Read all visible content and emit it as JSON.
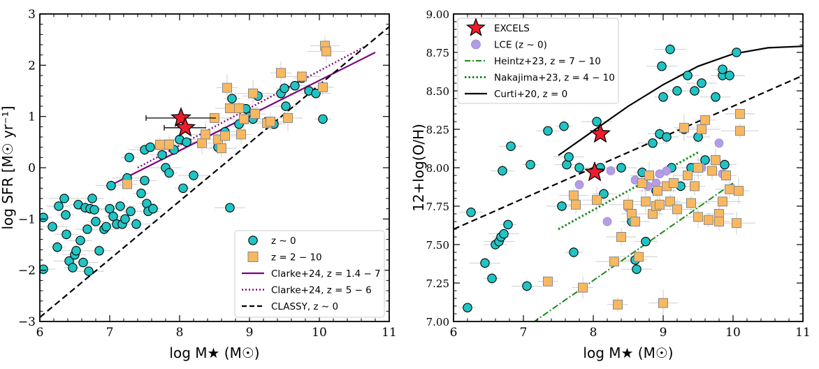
{
  "chart_data": [
    {
      "type": "scatter",
      "xlabel": "log M★ (M☉)",
      "ylabel": "log SFR [M☉ yr⁻¹]",
      "xlim": [
        6,
        11
      ],
      "ylim": [
        -3,
        3
      ],
      "xticks": [
        "6",
        "7",
        "8",
        "9",
        "10",
        "11"
      ],
      "yticks": [
        "−3",
        "−2",
        "−1",
        "0",
        "1",
        "2",
        "3"
      ],
      "legend_position": "lower-right",
      "legend": [
        {
          "label": "z ∼ 0",
          "marker": "circle"
        },
        {
          "label": "z = 2 − 10",
          "marker": "square"
        },
        {
          "label": "Clarke+24, z = 1.4 − 7",
          "marker": "solid-line"
        },
        {
          "label": "Clarke+24, z = 5 − 6",
          "marker": "dotted-line"
        },
        {
          "label": "CLASSY, z ∼ 0",
          "marker": "dashed-line"
        }
      ],
      "series": [
        {
          "name": "z ∼ 0",
          "points": [
            [
              6.05,
              -0.97
            ],
            [
              6.05,
              -1.98
            ],
            [
              6.18,
              -1.15
            ],
            [
              6.25,
              -1.55
            ],
            [
              6.27,
              -0.75
            ],
            [
              6.35,
              -0.6
            ],
            [
              6.37,
              -0.92
            ],
            [
              6.38,
              -1.3
            ],
            [
              6.42,
              -1.82
            ],
            [
              6.47,
              -1.95
            ],
            [
              6.5,
              -1.7
            ],
            [
              6.52,
              -1.62
            ],
            [
              6.55,
              -0.72
            ],
            [
              6.58,
              -1.42
            ],
            [
              6.62,
              -1.85
            ],
            [
              6.65,
              -0.78
            ],
            [
              6.68,
              -1.2
            ],
            [
              6.7,
              -2.02
            ],
            [
              6.72,
              -0.8
            ],
            [
              6.75,
              -0.6
            ],
            [
              6.78,
              -0.82
            ],
            [
              6.8,
              -1.05
            ],
            [
              6.85,
              -1.62
            ],
            [
              6.92,
              -1.2
            ],
            [
              6.95,
              -1.15
            ],
            [
              7.0,
              -0.8
            ],
            [
              7.02,
              -0.35
            ],
            [
              7.05,
              -0.95
            ],
            [
              7.1,
              -1.1
            ],
            [
              7.15,
              -0.75
            ],
            [
              7.18,
              -1.1
            ],
            [
              7.22,
              -1.0
            ],
            [
              7.25,
              -0.2
            ],
            [
              7.28,
              0.2
            ],
            [
              7.3,
              -0.85
            ],
            [
              7.38,
              -1.1
            ],
            [
              7.45,
              -0.5
            ],
            [
              7.5,
              -0.25
            ],
            [
              7.5,
              0.35
            ],
            [
              7.53,
              -0.7
            ],
            [
              7.55,
              -0.85
            ],
            [
              7.58,
              0.4
            ],
            [
              7.62,
              -0.8
            ],
            [
              7.75,
              0.25
            ],
            [
              7.8,
              0.0
            ],
            [
              7.85,
              -0.1
            ],
            [
              7.92,
              0.35
            ],
            [
              8.0,
              0.55
            ],
            [
              8.05,
              -0.4
            ],
            [
              8.1,
              0.5
            ],
            [
              8.2,
              -0.15
            ],
            [
              8.55,
              0.4
            ],
            [
              8.65,
              0.7
            ],
            [
              8.72,
              -0.78
            ],
            [
              8.75,
              1.35
            ],
            [
              8.85,
              0.85
            ],
            [
              8.95,
              1.15
            ],
            [
              9.0,
              1.0
            ],
            [
              9.05,
              0.95
            ],
            [
              9.12,
              1.4
            ],
            [
              9.25,
              0.9
            ],
            [
              9.35,
              0.85
            ],
            [
              9.45,
              1.45
            ],
            [
              9.5,
              1.55
            ],
            [
              9.52,
              1.2
            ],
            [
              9.65,
              1.6
            ],
            [
              9.75,
              1.75
            ],
            [
              9.85,
              1.5
            ],
            [
              9.95,
              1.45
            ],
            [
              10.05,
              0.95
            ]
          ]
        },
        {
          "name": "z = 2 − 10",
          "points": [
            [
              7.25,
              -0.32
            ],
            [
              7.72,
              0.45
            ],
            [
              7.85,
              0.45
            ],
            [
              8.32,
              0.48
            ],
            [
              8.37,
              0.65
            ],
            [
              8.5,
              0.97
            ],
            [
              8.55,
              0.55
            ],
            [
              8.6,
              0.38
            ],
            [
              8.65,
              0.62
            ],
            [
              8.68,
              1.56
            ],
            [
              8.72,
              1.16
            ],
            [
              8.85,
              1.16
            ],
            [
              8.88,
              0.65
            ],
            [
              8.92,
              0.95
            ],
            [
              9.05,
              1.45
            ],
            [
              9.08,
              1.05
            ],
            [
              9.25,
              0.87
            ],
            [
              9.3,
              0.9
            ],
            [
              9.45,
              1.85
            ],
            [
              9.55,
              0.97
            ],
            [
              9.75,
              1.78
            ],
            [
              10.05,
              1.57
            ],
            [
              10.08,
              2.38
            ],
            [
              10.1,
              2.27
            ]
          ]
        },
        {
          "name": "EXCELS",
          "points": [
            [
              8.02,
              0.97
            ],
            [
              8.08,
              0.78
            ]
          ]
        },
        {
          "name": "Clarke+24, z = 1.4 − 7",
          "type": "line",
          "points": [
            [
              7.0,
              -0.35
            ],
            [
              10.8,
              2.25
            ]
          ]
        },
        {
          "name": "Clarke+24, z = 5 − 6",
          "type": "line",
          "points": [
            [
              7.4,
              0.0
            ],
            [
              10.7,
              2.4
            ]
          ]
        },
        {
          "name": "CLASSY, z ∼ 0",
          "type": "line",
          "points": [
            [
              6.0,
              -2.92
            ],
            [
              11.0,
              2.75
            ]
          ]
        }
      ]
    },
    {
      "type": "scatter",
      "xlabel": "log M★ (M☉)",
      "ylabel": "12+log(O/H)",
      "xlim": [
        6,
        11
      ],
      "ylim": [
        7.0,
        9.0
      ],
      "xticks": [
        "6",
        "7",
        "8",
        "9",
        "10",
        "11"
      ],
      "yticks": [
        "7.00",
        "7.25",
        "7.50",
        "7.75",
        "8.00",
        "8.25",
        "8.50",
        "8.75",
        "9.00"
      ],
      "legend_position": "upper-left",
      "legend": [
        {
          "label": "EXCELS",
          "marker": "star"
        },
        {
          "label": "LCE (z ∼ 0)",
          "marker": "circle-lilac"
        },
        {
          "label": "Heintz+23, z = 7 − 10",
          "marker": "dashdot-line"
        },
        {
          "label": "Nakajima+23, z = 4 − 10",
          "marker": "dotted-line"
        },
        {
          "label": "Curti+20, z = 0",
          "marker": "solid-line"
        }
      ],
      "series": [
        {
          "name": "z ∼ 0",
          "points": [
            [
              6.2,
              7.09
            ],
            [
              6.25,
              7.71
            ],
            [
              6.45,
              7.38
            ],
            [
              6.55,
              7.28
            ],
            [
              6.6,
              7.5
            ],
            [
              6.65,
              7.52
            ],
            [
              6.68,
              7.55
            ],
            [
              6.7,
              7.98
            ],
            [
              6.72,
              7.57
            ],
            [
              6.78,
              7.63
            ],
            [
              6.82,
              8.14
            ],
            [
              7.05,
              7.23
            ],
            [
              7.1,
              8.02
            ],
            [
              7.35,
              8.24
            ],
            [
              7.55,
              7.75
            ],
            [
              7.58,
              8.27
            ],
            [
              7.62,
              8.02
            ],
            [
              7.65,
              8.07
            ],
            [
              7.72,
              7.45
            ],
            [
              7.8,
              8.0
            ],
            [
              8.05,
              8.3
            ],
            [
              8.1,
              8.0
            ],
            [
              8.15,
              7.83
            ],
            [
              8.4,
              8.0
            ],
            [
              8.55,
              7.65
            ],
            [
              8.6,
              7.4
            ],
            [
              8.62,
              7.34
            ],
            [
              8.7,
              7.97
            ],
            [
              8.75,
              7.52
            ],
            [
              8.85,
              8.16
            ],
            [
              8.9,
              7.85
            ],
            [
              8.95,
              8.22
            ],
            [
              8.98,
              8.66
            ],
            [
              9.0,
              8.46
            ],
            [
              9.05,
              8.2
            ],
            [
              9.1,
              8.77
            ],
            [
              9.12,
              8.0
            ],
            [
              9.2,
              8.5
            ],
            [
              9.25,
              7.88
            ],
            [
              9.3,
              8.25
            ],
            [
              9.35,
              8.6
            ],
            [
              9.4,
              8.0
            ],
            [
              9.45,
              8.5
            ],
            [
              9.5,
              8.2
            ],
            [
              9.55,
              8.55
            ],
            [
              9.6,
              8.05
            ],
            [
              9.85,
              8.6
            ],
            [
              9.95,
              8.6
            ],
            [
              10.05,
              8.75
            ],
            [
              9.88,
              8.02
            ],
            [
              9.75,
              8.46
            ],
            [
              9.85,
              8.64
            ]
          ]
        },
        {
          "name": "z = 2 − 10",
          "points": [
            [
              7.35,
              7.26
            ],
            [
              7.72,
              7.82
            ],
            [
              7.75,
              7.76
            ],
            [
              7.85,
              7.22
            ],
            [
              8.05,
              7.79
            ],
            [
              8.3,
              7.39
            ],
            [
              8.35,
              7.11
            ],
            [
              8.4,
              7.55
            ],
            [
              8.5,
              7.76
            ],
            [
              8.55,
              7.7
            ],
            [
              8.6,
              7.65
            ],
            [
              8.65,
              7.42
            ],
            [
              8.7,
              7.9
            ],
            [
              8.75,
              7.78
            ],
            [
              8.8,
              7.95
            ],
            [
              8.85,
              7.7
            ],
            [
              8.9,
              7.75
            ],
            [
              8.92,
              7.85
            ],
            [
              8.95,
              7.76
            ],
            [
              9.0,
              7.12
            ],
            [
              9.05,
              7.88
            ],
            [
              9.1,
              7.78
            ],
            [
              9.15,
              7.9
            ],
            [
              9.2,
              7.73
            ],
            [
              9.3,
              8.26
            ],
            [
              9.35,
              7.95
            ],
            [
              9.4,
              7.77
            ],
            [
              9.45,
              7.88
            ],
            [
              9.5,
              8.0
            ],
            [
              9.55,
              8.25
            ],
            [
              9.6,
              8.31
            ],
            [
              9.65,
              7.66
            ],
            [
              9.7,
              7.98
            ],
            [
              9.75,
              8.05
            ],
            [
              9.8,
              7.7
            ],
            [
              9.85,
              7.78
            ],
            [
              9.9,
              7.95
            ],
            [
              9.95,
              7.86
            ],
            [
              10.05,
              7.64
            ],
            [
              10.08,
              7.85
            ],
            [
              10.1,
              8.35
            ],
            [
              10.1,
              8.24
            ],
            [
              9.8,
              7.65
            ],
            [
              9.5,
              7.68
            ]
          ]
        },
        {
          "name": "LCE (z ∼ 0)",
          "points": [
            [
              7.8,
              7.89
            ],
            [
              8.2,
              7.65
            ],
            [
              8.25,
              7.98
            ],
            [
              8.5,
              7.74
            ],
            [
              8.6,
              7.92
            ],
            [
              8.78,
              7.88
            ],
            [
              8.9,
              7.9
            ],
            [
              8.95,
              7.96
            ],
            [
              9.05,
              7.98
            ],
            [
              9.55,
              8.0
            ],
            [
              9.8,
              8.16
            ],
            [
              9.85,
              7.96
            ]
          ]
        },
        {
          "name": "EXCELS",
          "points": [
            [
              8.1,
              8.22
            ],
            [
              8.02,
              7.97
            ]
          ]
        },
        {
          "name": "Heintz+23, z = 7 − 10",
          "type": "line",
          "points": [
            [
              7.0,
              6.95
            ],
            [
              10.0,
              7.9
            ]
          ]
        },
        {
          "name": "Nakajima+23, z = 4 − 10",
          "type": "line",
          "points": [
            [
              7.5,
              7.6
            ],
            [
              9.5,
              8.1
            ]
          ]
        },
        {
          "name": "Curti+20, z = 0",
          "type": "line",
          "points": [
            [
              7.5,
              8.08
            ],
            [
              8.0,
              8.24
            ],
            [
              8.5,
              8.4
            ],
            [
              9.0,
              8.54
            ],
            [
              9.5,
              8.66
            ],
            [
              10.0,
              8.74
            ],
            [
              10.5,
              8.78
            ],
            [
              11.0,
              8.79
            ]
          ]
        },
        {
          "name": "CLASSY, z ∼ 0",
          "type": "line",
          "points": [
            [
              6.0,
              7.6
            ],
            [
              11.0,
              8.6
            ]
          ]
        }
      ]
    }
  ]
}
